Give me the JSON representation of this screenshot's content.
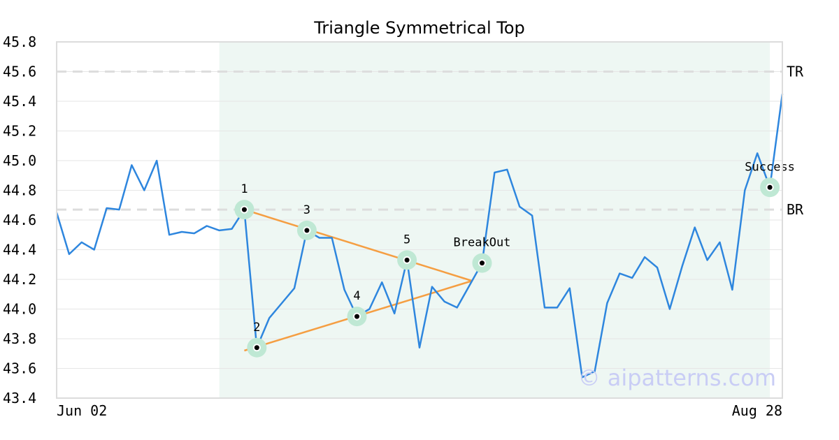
{
  "chart_data": {
    "type": "line",
    "title": "Triangle Symmetrical Top",
    "xlabel": "",
    "ylabel": "",
    "ylim": [
      43.4,
      45.8
    ],
    "yticks": [
      "45.8",
      "45.6",
      "45.4",
      "45.2",
      "45.0",
      "44.8",
      "44.6",
      "44.4",
      "44.2",
      "44.0",
      "43.8",
      "43.6",
      "43.4"
    ],
    "xtick_labels": [
      "Jun 02",
      "Aug 28"
    ],
    "grid": true,
    "series": [
      {
        "values": [
          44.65,
          44.37,
          44.45,
          44.4,
          44.68,
          44.67,
          44.97,
          44.8,
          45.0,
          44.5,
          44.52,
          44.51,
          44.56,
          44.53,
          44.54,
          44.67,
          43.74,
          43.94,
          44.04,
          44.14,
          44.53,
          44.48,
          44.48,
          44.13,
          43.95,
          44.0,
          44.18,
          43.97,
          44.33,
          43.74,
          44.15,
          44.05,
          44.01,
          44.16,
          44.31,
          44.92,
          44.94,
          44.69,
          44.63,
          44.01,
          44.01,
          44.14,
          43.54,
          43.58,
          44.04,
          44.24,
          44.21,
          44.35,
          44.28,
          44.0,
          44.29,
          44.55,
          44.33,
          44.45,
          44.13,
          44.8,
          45.05,
          44.82,
          45.45
        ],
        "color": "#2e86de"
      }
    ],
    "reference_lines": [
      {
        "label": "TR",
        "value": 45.6
      },
      {
        "label": "BR",
        "value": 44.67
      }
    ],
    "pattern_region": {
      "start_index": 13,
      "end_index": 57,
      "color": "#eef7f3"
    },
    "pattern_points": [
      {
        "label": "1",
        "index": 15,
        "value": 44.67
      },
      {
        "label": "2",
        "index": 16,
        "value": 43.74
      },
      {
        "label": "3",
        "index": 20,
        "value": 44.53
      },
      {
        "label": "4",
        "index": 24,
        "value": 43.95
      },
      {
        "label": "5",
        "index": 28,
        "value": 44.33
      },
      {
        "label": "BreakOut",
        "index": 34,
        "value": 44.31
      },
      {
        "label": "Success",
        "index": 57,
        "value": 44.82
      }
    ],
    "trendlines": [
      {
        "from": {
          "index": 15,
          "value": 44.67
        },
        "to": {
          "index": 33.2,
          "value": 44.19
        }
      },
      {
        "from": {
          "index": 15,
          "value": 43.72
        },
        "to": {
          "index": 33.2,
          "value": 44.19
        }
      }
    ],
    "watermark": "© aipatterns.com",
    "colors": {
      "line": "#2e86de",
      "trendline": "#f59e42",
      "marker_halo": "#bfe8d4",
      "reference_line": "#dddddd",
      "grid": "#e6e6e6",
      "axes_frame": "#dcdcdc"
    }
  }
}
